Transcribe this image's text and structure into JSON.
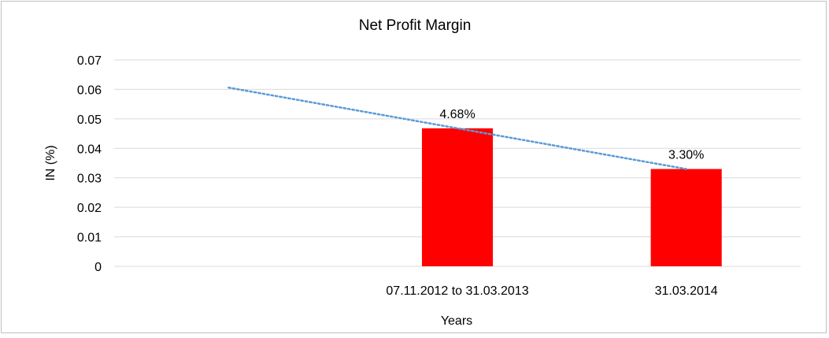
{
  "chart_data": {
    "type": "bar",
    "title": "Net Profit Margin",
    "xlabel": "Years",
    "ylabel": "IN (%)",
    "categories": [
      "",
      "07.11.2012 to 31.03.2013",
      "31.03.2014"
    ],
    "series": [
      {
        "values": [
          null,
          0.0468,
          0.033
        ],
        "data_labels": [
          "",
          "4.68%",
          "3.30%"
        ],
        "color": "#ff0000"
      }
    ],
    "trendline": {
      "type": "linear",
      "style": "dotted",
      "color": "#5b9bd5",
      "start_value": 0.0606,
      "end_value": 0.033
    },
    "ylim": [
      0,
      0.07
    ],
    "yticks": [
      "0",
      "0.01",
      "0.02",
      "0.03",
      "0.04",
      "0.05",
      "0.06",
      "0.07"
    ],
    "grid": true,
    "legend": "none"
  }
}
